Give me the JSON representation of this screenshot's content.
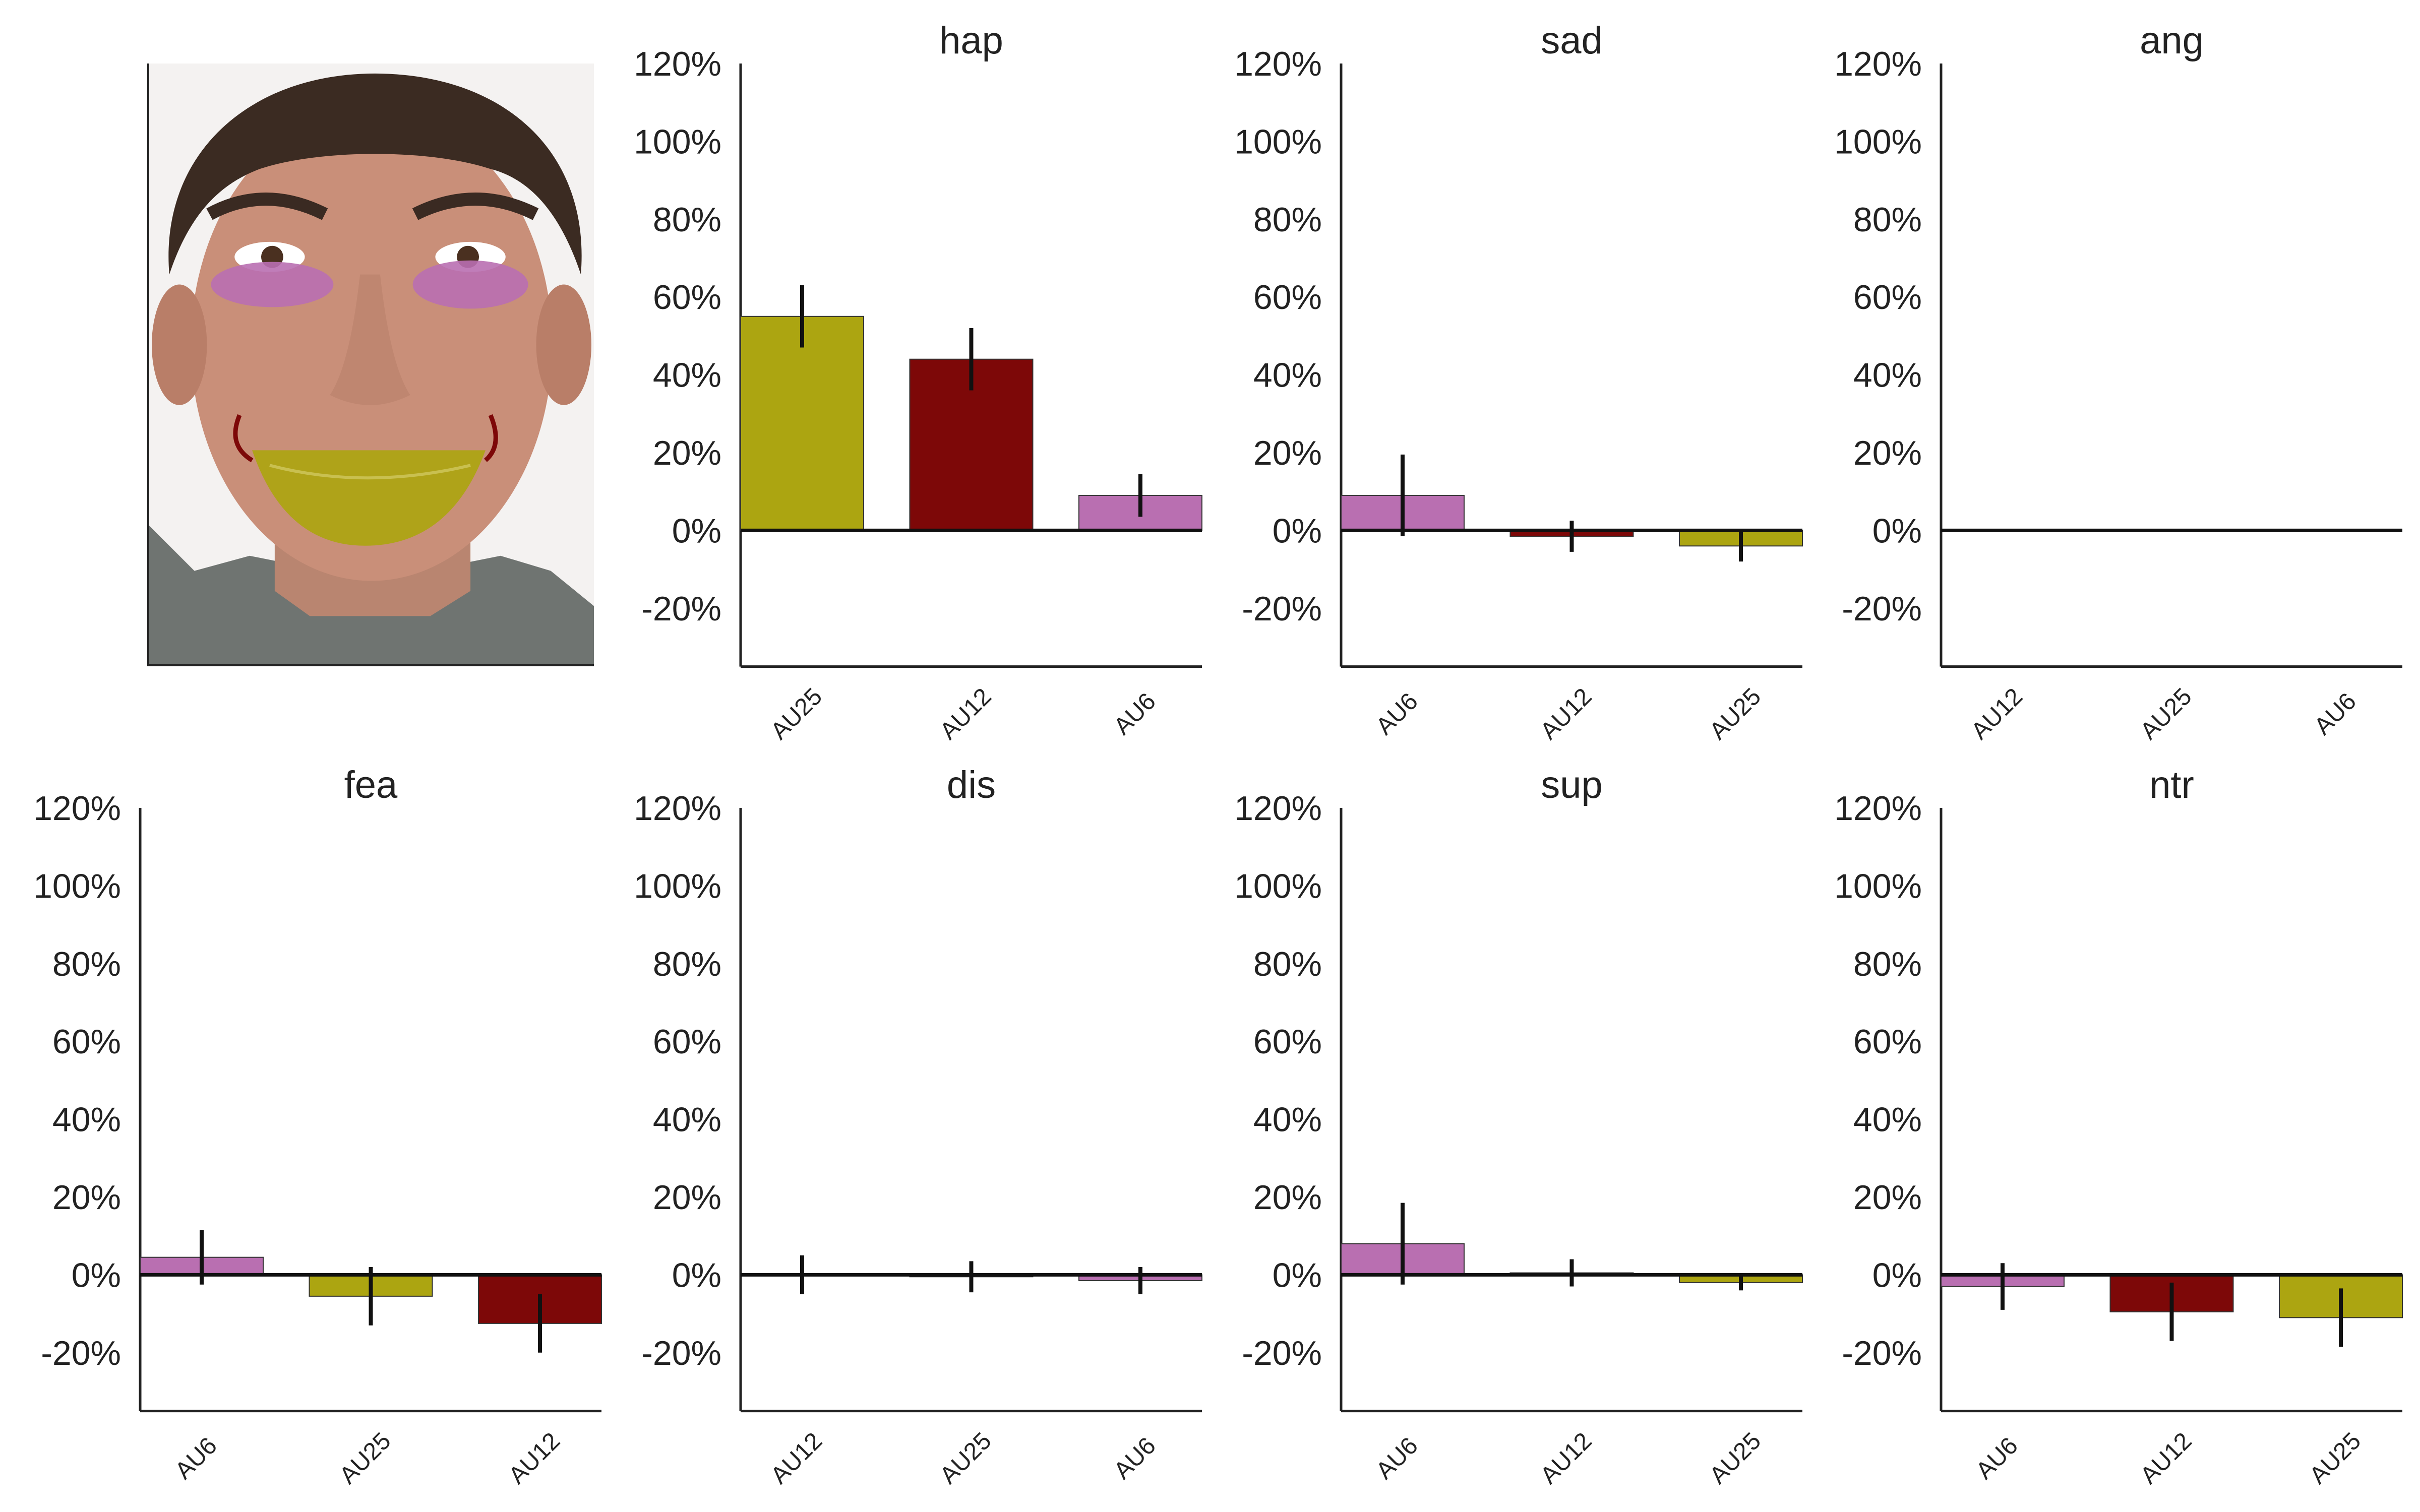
{
  "chart_data": [
    {
      "type": "bar",
      "title": "hap",
      "categories": [
        "AU25",
        "AU12",
        "AU6"
      ],
      "values": [
        55,
        44,
        9
      ],
      "errors": [
        8,
        8,
        5.5
      ],
      "colors": [
        "#aca511",
        "#7d0808",
        "#b96fb1"
      ],
      "yticks": [
        "120%",
        "100%",
        "80%",
        "60%",
        "40%",
        "20%",
        "0%",
        "-20%"
      ],
      "ylim": [
        -35,
        120
      ]
    },
    {
      "type": "bar",
      "title": "sad",
      "categories": [
        "AU6",
        "AU12",
        "AU25"
      ],
      "values": [
        9,
        -1.5,
        -4
      ],
      "errors": [
        10.5,
        4,
        4
      ],
      "colors": [
        "#b96fb1",
        "#7d0808",
        "#aca511"
      ],
      "yticks": [
        "120%",
        "100%",
        "80%",
        "60%",
        "40%",
        "20%",
        "0%",
        "-20%"
      ],
      "ylim": [
        -35,
        120
      ]
    },
    {
      "type": "bar",
      "title": "ang",
      "categories": [
        "AU12",
        "AU25",
        "AU6"
      ],
      "values": [
        0,
        0,
        0
      ],
      "errors": [
        0,
        0,
        0
      ],
      "colors": [
        "#7d0808",
        "#aca511",
        "#b96fb1"
      ],
      "yticks": [
        "120%",
        "100%",
        "80%",
        "60%",
        "40%",
        "20%",
        "0%",
        "-20%"
      ],
      "ylim": [
        -35,
        120
      ]
    },
    {
      "type": "bar",
      "title": "fea",
      "categories": [
        "AU6",
        "AU25",
        "AU12"
      ],
      "values": [
        4.5,
        -5.5,
        -12.5
      ],
      "errors": [
        7,
        7.5,
        7.5
      ],
      "colors": [
        "#b96fb1",
        "#aca511",
        "#7d0808"
      ],
      "yticks": [
        "120%",
        "100%",
        "80%",
        "60%",
        "40%",
        "20%",
        "0%",
        "-20%"
      ],
      "ylim": [
        -35,
        120
      ]
    },
    {
      "type": "bar",
      "title": "dis",
      "categories": [
        "AU12",
        "AU25",
        "AU6"
      ],
      "values": [
        0,
        -0.5,
        -1.5
      ],
      "errors": [
        5,
        4,
        3.5
      ],
      "colors": [
        "#7d0808",
        "#aca511",
        "#b96fb1"
      ],
      "yticks": [
        "120%",
        "100%",
        "80%",
        "60%",
        "40%",
        "20%",
        "0%",
        "-20%"
      ],
      "ylim": [
        -35,
        120
      ]
    },
    {
      "type": "bar",
      "title": "sup",
      "categories": [
        "AU6",
        "AU12",
        "AU25"
      ],
      "values": [
        8,
        0.5,
        -2
      ],
      "errors": [
        10.5,
        3.5,
        2
      ],
      "colors": [
        "#b96fb1",
        "#7d0808",
        "#aca511"
      ],
      "yticks": [
        "120%",
        "100%",
        "80%",
        "60%",
        "40%",
        "20%",
        "0%",
        "-20%"
      ],
      "ylim": [
        -35,
        120
      ]
    },
    {
      "type": "bar",
      "title": "ntr",
      "categories": [
        "AU6",
        "AU12",
        "AU25"
      ],
      "values": [
        -3,
        -9.5,
        -11
      ],
      "errors": [
        6,
        7.5,
        7.5
      ],
      "colors": [
        "#b96fb1",
        "#7d0808",
        "#aca511"
      ],
      "yticks": [
        "120%",
        "100%",
        "80%",
        "60%",
        "40%",
        "20%",
        "0%",
        "-20%"
      ],
      "ylim": [
        -35,
        120
      ]
    }
  ],
  "face_image": {
    "description_icon": "face-photo",
    "colors": {
      "cheek": "#b96fb1",
      "lips": "#aca511",
      "dimple": "#7d0808",
      "skin": "#c98f79",
      "hair": "#3b2b22"
    }
  }
}
